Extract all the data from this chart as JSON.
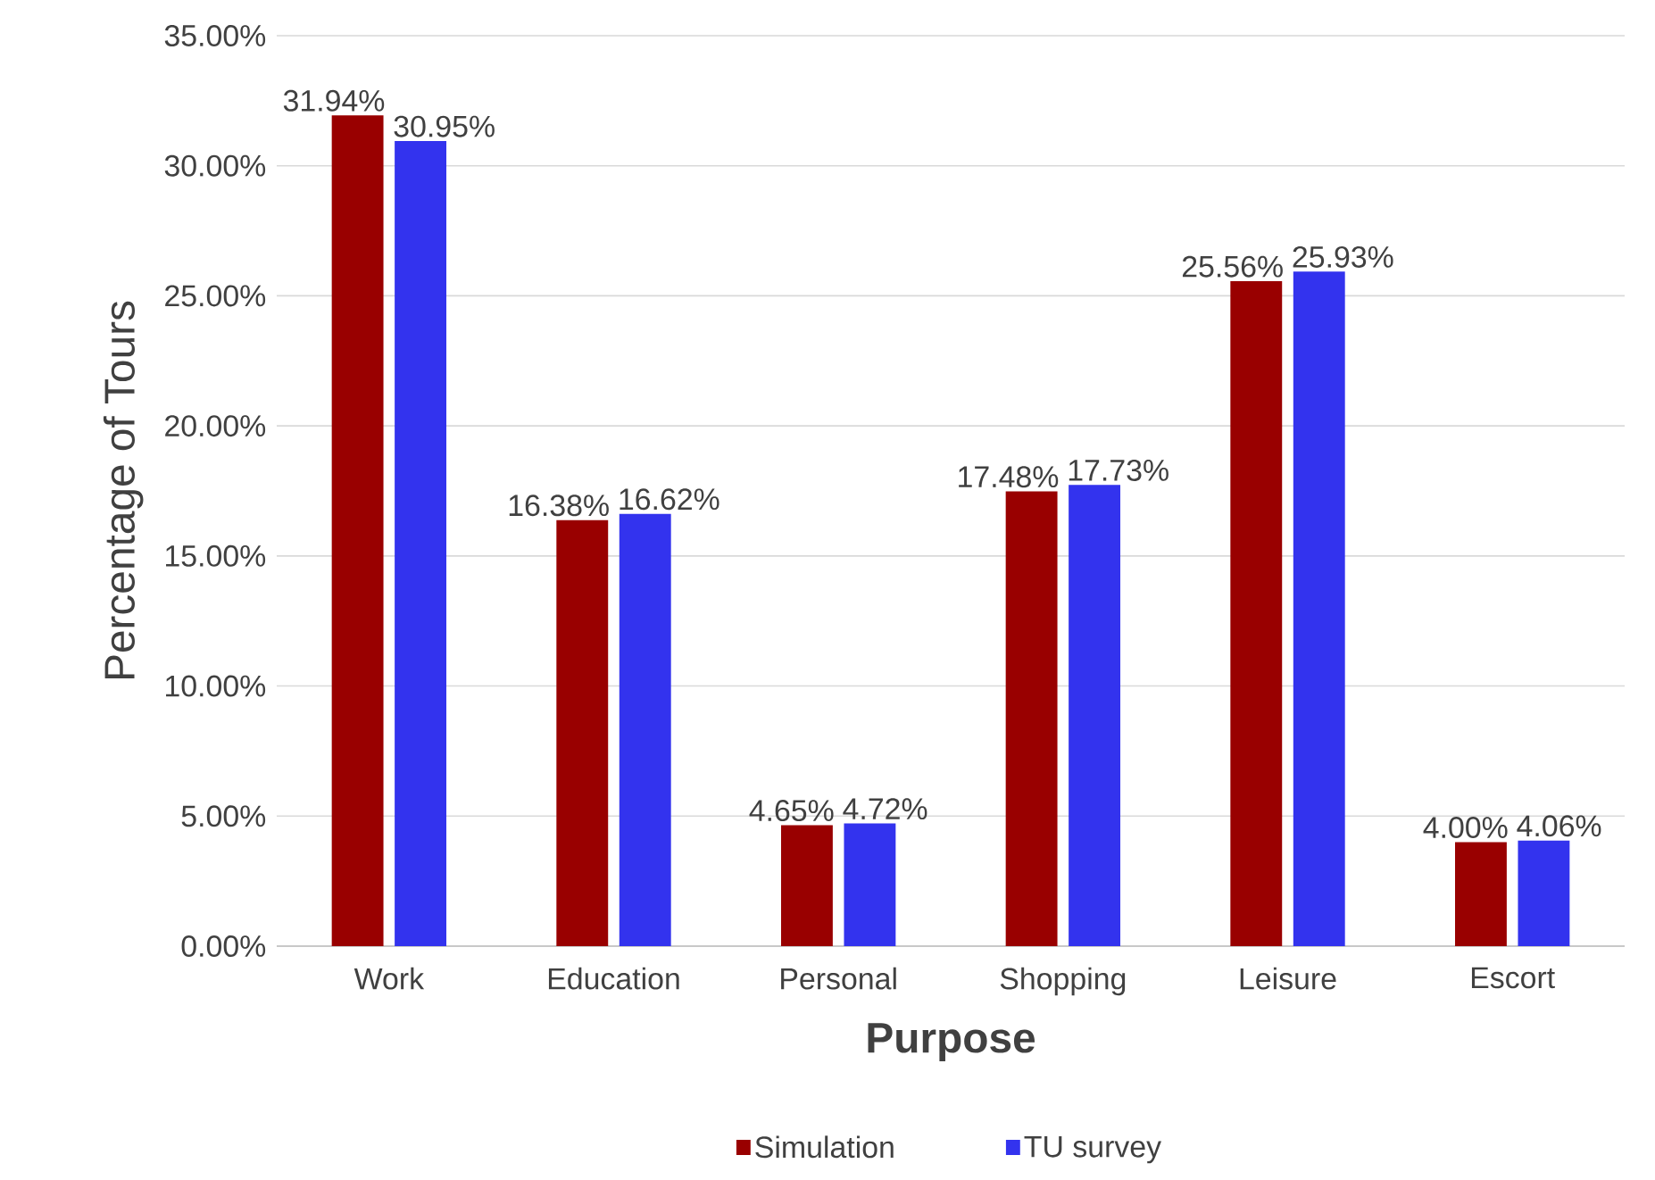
{
  "chart_data": {
    "type": "bar",
    "xlabel": "Purpose",
    "ylabel": "Percentage of Tours",
    "categories": [
      "Work",
      "Education",
      "Personal",
      "Shopping",
      "Leisure",
      "Escort"
    ],
    "series": [
      {
        "name": "Simulation",
        "color": "#990000",
        "values": [
          31.94,
          16.38,
          4.65,
          17.48,
          25.56,
          4.0
        ],
        "value_labels": [
          "31.94%",
          "16.38%",
          "4.65%",
          "17.48%",
          "25.56%",
          "4.00%"
        ]
      },
      {
        "name": "TU survey",
        "color": "#3333ee",
        "values": [
          30.95,
          16.62,
          4.72,
          17.73,
          25.93,
          4.06
        ],
        "value_labels": [
          "30.95%",
          "16.62%",
          "4.72%",
          "17.73%",
          "25.93%",
          "4.06%"
        ]
      }
    ],
    "ylim": [
      0,
      35
    ],
    "yticks": [
      {
        "value": 0,
        "label": "0.00%"
      },
      {
        "value": 5,
        "label": "5.00%"
      },
      {
        "value": 10,
        "label": "10.00%"
      },
      {
        "value": 15,
        "label": "15.00%"
      },
      {
        "value": 20,
        "label": "20.00%"
      },
      {
        "value": 25,
        "label": "25.00%"
      },
      {
        "value": 30,
        "label": "30.00%"
      },
      {
        "value": 35,
        "label": "35.00%"
      }
    ],
    "grid": "y",
    "legend": "bottom"
  }
}
